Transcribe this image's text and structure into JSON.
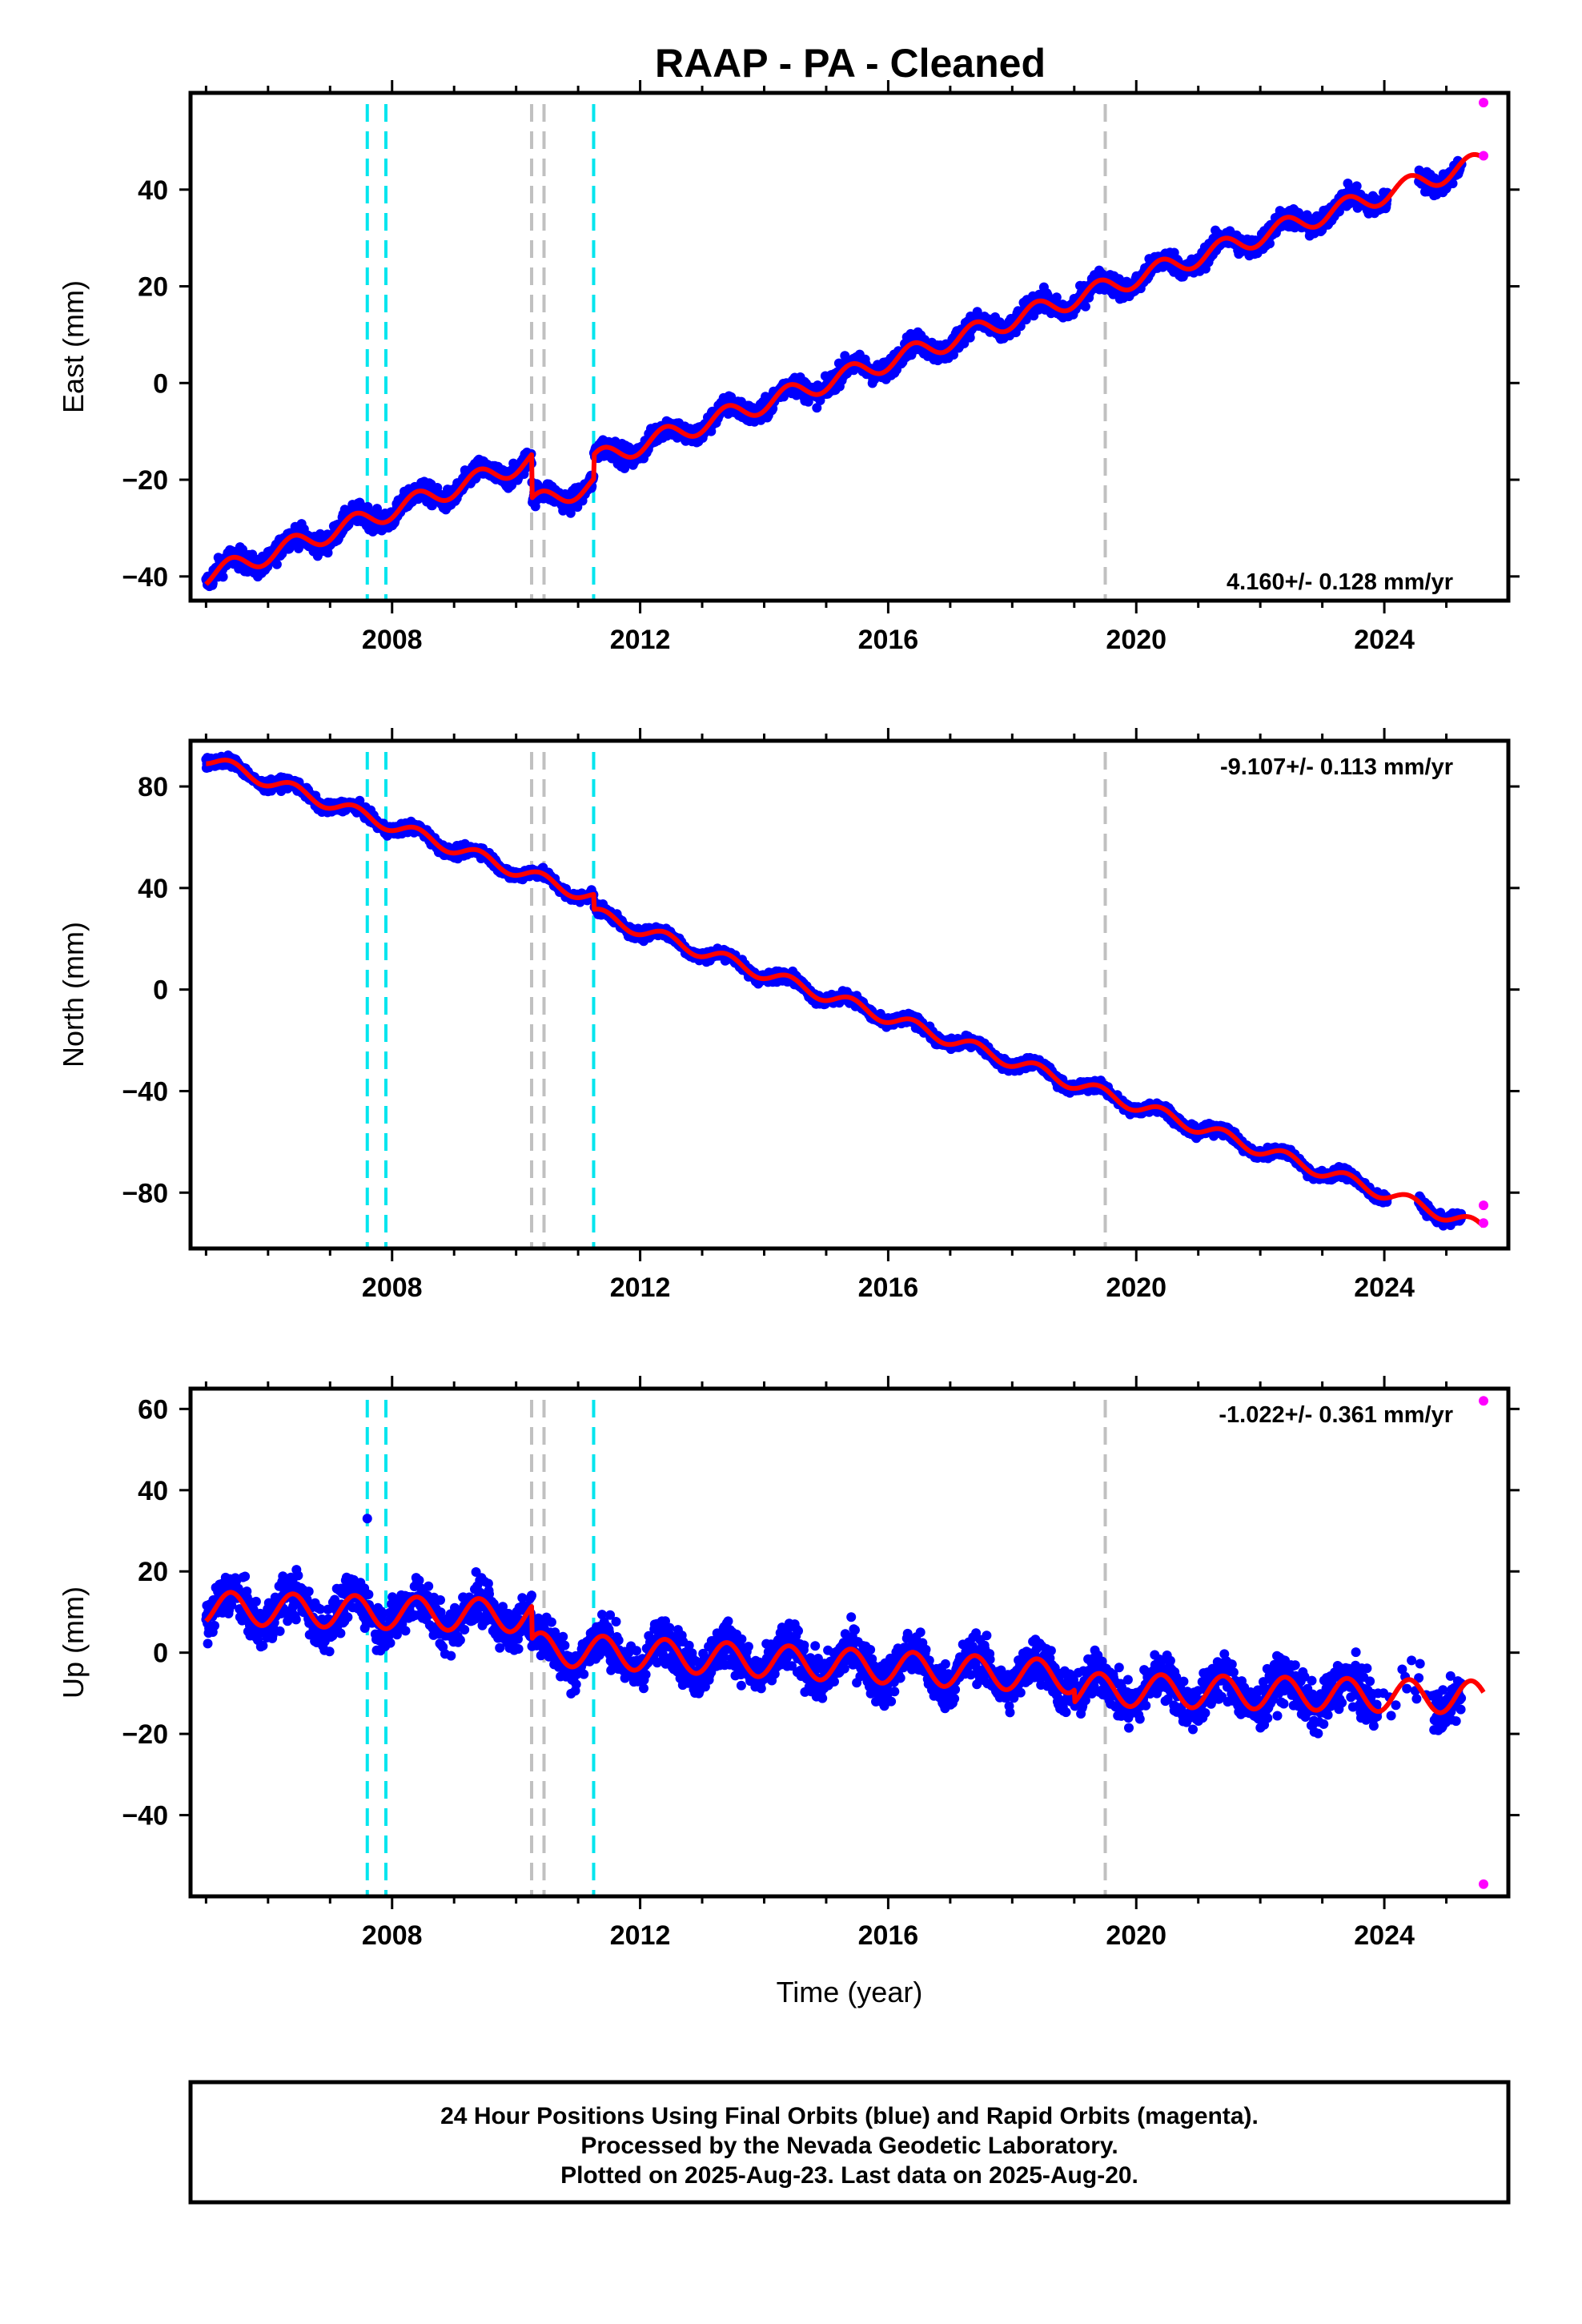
{
  "title": "RAAP  - PA - Cleaned",
  "colors": {
    "final_orbits": "#0000ff",
    "rapid_orbits": "#ff00ff",
    "model": "#ff0000",
    "equipment_break": "#00e5ee",
    "other_break": "#c0c0c0",
    "frame": "#000000"
  },
  "footer": {
    "line1": "24 Hour Positions Using Final Orbits (blue) and Rapid Orbits (magenta).",
    "line2": "Processed by the Nevada Geodetic Laboratory.",
    "line3": "Plotted on 2025-Aug-23. Last data on 2025-Aug-20."
  },
  "chart_data": [
    {
      "type": "scatter",
      "ylabel": "East (mm)",
      "xlabel": "",
      "rate_label": "4.160+/- 0.128 mm/yr",
      "xlim": [
        2004.75,
        2026.0
      ],
      "ylim": [
        -45,
        60
      ],
      "xticks": [
        2008,
        2012,
        2016,
        2020,
        2024
      ],
      "yticks": [
        -40,
        -20,
        0,
        20,
        40
      ],
      "equipment_breaks": [
        2007.6,
        2007.9,
        2011.25
      ],
      "other_breaks": [
        2010.25,
        2010.45,
        2019.5
      ],
      "model_trend": [
        [
          2005.0,
          -40
        ],
        [
          2010.25,
          -16
        ],
        [
          2010.26,
          -25
        ],
        [
          2011.25,
          -21
        ],
        [
          2011.26,
          -16
        ],
        [
          2025.6,
          46
        ]
      ],
      "seasonal_amplitude_mm": 2,
      "scatter_mm": 1.5,
      "final_span": [
        2005.0,
        2025.25
      ],
      "rapid_points": [
        [
          2025.6,
          58
        ],
        [
          2025.6,
          47
        ]
      ]
    },
    {
      "type": "scatter",
      "ylabel": "North (mm)",
      "xlabel": "",
      "rate_label": "-9.107+/- 0.113 mm/yr",
      "xlim": [
        2004.75,
        2026.0
      ],
      "ylim": [
        -102,
        98
      ],
      "xticks": [
        2008,
        2012,
        2016,
        2020,
        2024
      ],
      "yticks": [
        -80,
        -40,
        0,
        40,
        80
      ],
      "equipment_breaks": [
        2007.6,
        2007.9,
        2011.25
      ],
      "other_breaks": [
        2010.25,
        2010.45,
        2019.5
      ],
      "model_trend": [
        [
          2005.0,
          91
        ],
        [
          2011.25,
          36
        ],
        [
          2011.26,
          30
        ],
        [
          2025.6,
          -94
        ]
      ],
      "seasonal_amplitude_mm": 2.5,
      "scatter_mm": 1.5,
      "final_span": [
        2005.0,
        2025.25
      ],
      "rapid_points": [
        [
          2025.6,
          -85
        ],
        [
          2025.6,
          -92
        ]
      ]
    },
    {
      "type": "scatter",
      "ylabel": "Up (mm)",
      "xlabel": "Time (year)",
      "rate_label": "-1.022+/- 0.361 mm/yr",
      "xlim": [
        2004.75,
        2026.0
      ],
      "ylim": [
        -60,
        65
      ],
      "xticks": [
        2008,
        2012,
        2016,
        2020,
        2024
      ],
      "yticks": [
        -40,
        -20,
        0,
        20,
        40,
        60
      ],
      "equipment_breaks": [
        2007.6,
        2007.9,
        2011.25
      ],
      "other_breaks": [
        2010.25,
        2010.45,
        2019.5
      ],
      "model_trend": [
        [
          2005.0,
          11
        ],
        [
          2010.25,
          9
        ],
        [
          2010.26,
          1
        ],
        [
          2019.0,
          -6
        ],
        [
          2019.01,
          -9
        ],
        [
          2025.6,
          -11
        ]
      ],
      "seasonal_amplitude_mm": 4,
      "scatter_mm": 4,
      "final_span": [
        2005.0,
        2025.25
      ],
      "rapid_points": [
        [
          2025.6,
          62
        ],
        [
          2025.6,
          -57
        ]
      ],
      "outliers": [
        [
          2007.6,
          33
        ]
      ]
    }
  ]
}
